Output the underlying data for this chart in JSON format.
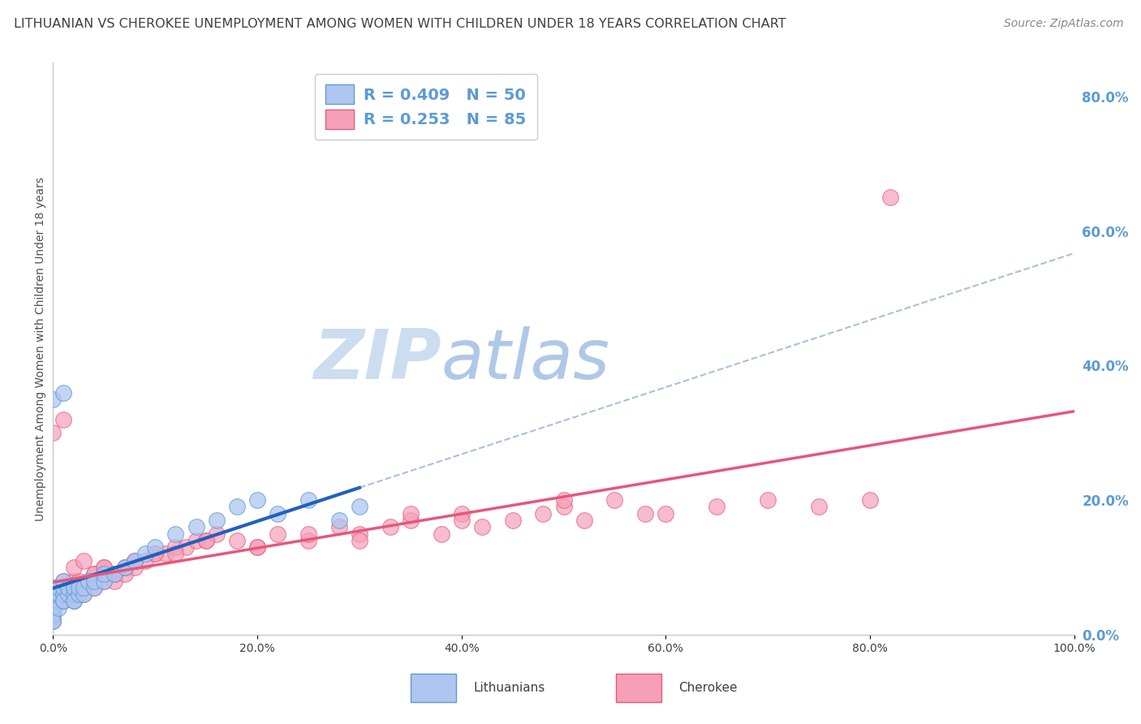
{
  "title": "LITHUANIAN VS CHEROKEE UNEMPLOYMENT AMONG WOMEN WITH CHILDREN UNDER 18 YEARS CORRELATION CHART",
  "source": "Source: ZipAtlas.com",
  "ylabel": "Unemployment Among Women with Children Under 18 years",
  "xlim": [
    0,
    1.0
  ],
  "ylim": [
    0,
    0.85
  ],
  "legend_r1": "R = 0.409   N = 50",
  "legend_r2": "R = 0.253   N = 85",
  "color_lit_face": "#aec6f0",
  "color_lit_edge": "#5b9bd5",
  "color_cher_face": "#f5a0b8",
  "color_cher_edge": "#e8567a",
  "color_lit_line": "#2060c0",
  "color_cher_line": "#e8567a",
  "color_dashed_line": "#a0b8d8",
  "watermark_zip": "ZIP",
  "watermark_atlas": "atlas",
  "watermark_color": "#ccddf0",
  "background_color": "#ffffff",
  "grid_color": "#e0e0e0",
  "title_color": "#404040",
  "right_tick_color": "#5b9bd5",
  "legend_text_color": "#5b9bd5",
  "seed": 42,
  "lit_x_raw": [
    0.0,
    0.0,
    0.0,
    0.0,
    0.0,
    0.0,
    0.0,
    0.0,
    0.0,
    0.0,
    0.005,
    0.005,
    0.005,
    0.005,
    0.01,
    0.01,
    0.01,
    0.01,
    0.01,
    0.015,
    0.015,
    0.02,
    0.02,
    0.02,
    0.02,
    0.025,
    0.025,
    0.03,
    0.03,
    0.035,
    0.04,
    0.04,
    0.05,
    0.05,
    0.06,
    0.07,
    0.08,
    0.09,
    0.1,
    0.12,
    0.14,
    0.16,
    0.18,
    0.2,
    0.22,
    0.25,
    0.28,
    0.3,
    0.0,
    0.01
  ],
  "lit_y_raw": [
    0.02,
    0.03,
    0.04,
    0.05,
    0.06,
    0.07,
    0.05,
    0.04,
    0.03,
    0.02,
    0.05,
    0.06,
    0.07,
    0.04,
    0.05,
    0.06,
    0.07,
    0.08,
    0.05,
    0.06,
    0.07,
    0.05,
    0.06,
    0.07,
    0.05,
    0.06,
    0.07,
    0.06,
    0.07,
    0.08,
    0.07,
    0.08,
    0.08,
    0.09,
    0.09,
    0.1,
    0.11,
    0.12,
    0.13,
    0.15,
    0.16,
    0.17,
    0.19,
    0.2,
    0.18,
    0.2,
    0.17,
    0.19,
    0.35,
    0.36
  ],
  "cher_x_raw": [
    0.0,
    0.0,
    0.0,
    0.0,
    0.0,
    0.0,
    0.0,
    0.0,
    0.0,
    0.0,
    0.005,
    0.005,
    0.005,
    0.01,
    0.01,
    0.01,
    0.015,
    0.015,
    0.02,
    0.02,
    0.02,
    0.025,
    0.025,
    0.03,
    0.03,
    0.035,
    0.04,
    0.04,
    0.05,
    0.05,
    0.06,
    0.06,
    0.07,
    0.07,
    0.08,
    0.08,
    0.09,
    0.1,
    0.11,
    0.12,
    0.13,
    0.14,
    0.15,
    0.16,
    0.18,
    0.2,
    0.22,
    0.25,
    0.28,
    0.3,
    0.33,
    0.35,
    0.38,
    0.4,
    0.42,
    0.45,
    0.48,
    0.5,
    0.52,
    0.55,
    0.58,
    0.6,
    0.65,
    0.7,
    0.75,
    0.8,
    0.0,
    0.01,
    0.02,
    0.03,
    0.04,
    0.05,
    0.06,
    0.07,
    0.08,
    0.1,
    0.12,
    0.15,
    0.2,
    0.25,
    0.3,
    0.35,
    0.4,
    0.5,
    0.82
  ],
  "cher_y_raw": [
    0.02,
    0.03,
    0.04,
    0.05,
    0.06,
    0.07,
    0.03,
    0.04,
    0.05,
    0.06,
    0.05,
    0.06,
    0.07,
    0.05,
    0.07,
    0.08,
    0.06,
    0.07,
    0.05,
    0.06,
    0.08,
    0.07,
    0.08,
    0.06,
    0.07,
    0.08,
    0.07,
    0.09,
    0.08,
    0.1,
    0.08,
    0.09,
    0.09,
    0.1,
    0.1,
    0.11,
    0.11,
    0.12,
    0.12,
    0.13,
    0.13,
    0.14,
    0.14,
    0.15,
    0.14,
    0.13,
    0.15,
    0.14,
    0.16,
    0.15,
    0.16,
    0.17,
    0.15,
    0.18,
    0.16,
    0.17,
    0.18,
    0.19,
    0.17,
    0.2,
    0.18,
    0.18,
    0.19,
    0.2,
    0.19,
    0.2,
    0.3,
    0.32,
    0.1,
    0.11,
    0.09,
    0.1,
    0.09,
    0.1,
    0.11,
    0.12,
    0.12,
    0.14,
    0.13,
    0.15,
    0.14,
    0.18,
    0.17,
    0.2,
    0.65
  ]
}
